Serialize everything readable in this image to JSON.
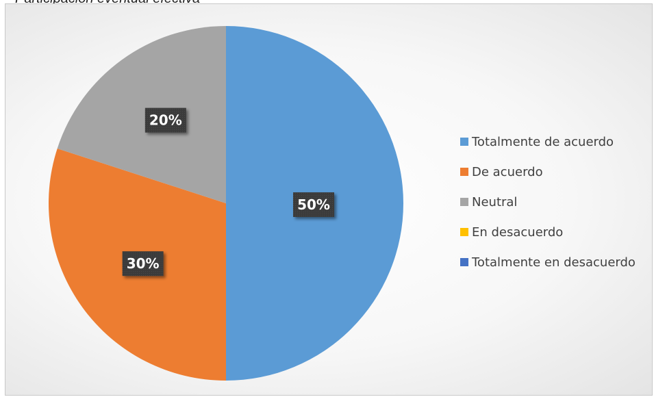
{
  "caption": "Participación eventual efectiva",
  "colors": {
    "totalmente_de_acuerdo": "#5b9bd5",
    "de_acuerdo": "#ed7d31",
    "neutral": "#a5a5a5",
    "en_desacuerdo": "#ffc000",
    "totalmente_en_desacuerdo": "#4472c4"
  },
  "chart_data": {
    "type": "pie",
    "title": "",
    "legend_position": "right",
    "categories": [
      "Totalmente de acuerdo",
      "De acuerdo",
      "Neutral",
      "En desacuerdo",
      "Totalmente en desacuerdo"
    ],
    "values": [
      50,
      30,
      20,
      0,
      0
    ],
    "data_labels": [
      "50%",
      "30%",
      "20%",
      "",
      ""
    ],
    "colors": [
      "#5b9bd5",
      "#ed7d31",
      "#a5a5a5",
      "#ffc000",
      "#4472c4"
    ]
  }
}
